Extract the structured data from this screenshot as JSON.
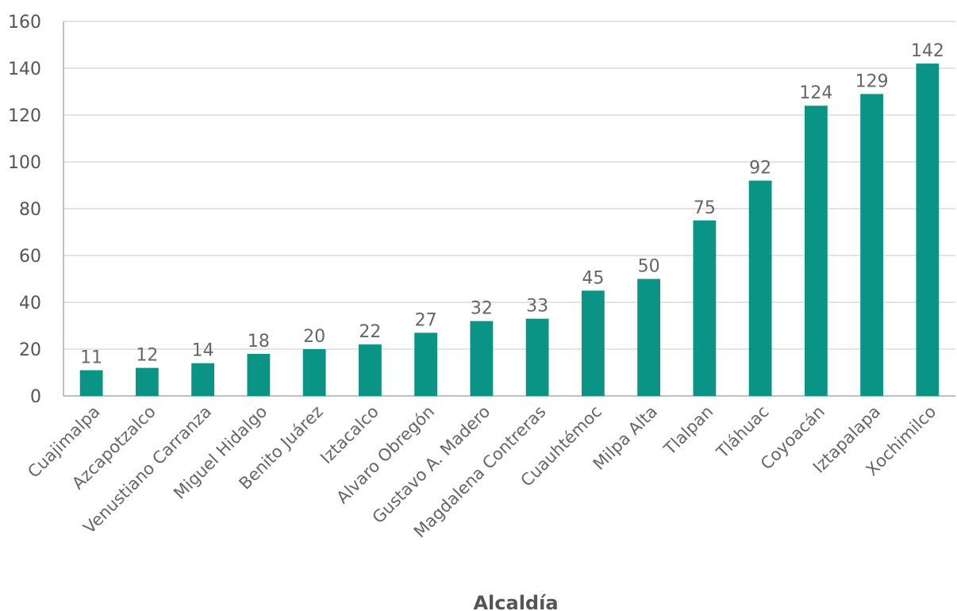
{
  "chart_data": {
    "type": "bar",
    "categories": [
      "Cuajimalpa",
      "Azcapotzalco",
      "Venustiano Carranza",
      "Miguel Hidalgo",
      "Benito Juárez",
      "Iztacalco",
      "Alvaro Obregón",
      "Gustavo A. Madero",
      "Magdalena Contreras",
      "Cuauhtémoc",
      "Milpa Alta",
      "Tlalpan",
      "Tláhuac",
      "Coyoacán",
      "Iztapalapa",
      "Xochimilco"
    ],
    "values": [
      11,
      12,
      14,
      18,
      20,
      22,
      27,
      32,
      33,
      45,
      50,
      75,
      92,
      124,
      129,
      142
    ],
    "xlabel": "Alcaldía",
    "ylabel": "",
    "ylim": [
      0,
      160
    ],
    "yticks": [
      0,
      20,
      40,
      60,
      80,
      100,
      120,
      140,
      160
    ],
    "grid": true,
    "bar_color": "#0a9486",
    "data_labels": true
  }
}
